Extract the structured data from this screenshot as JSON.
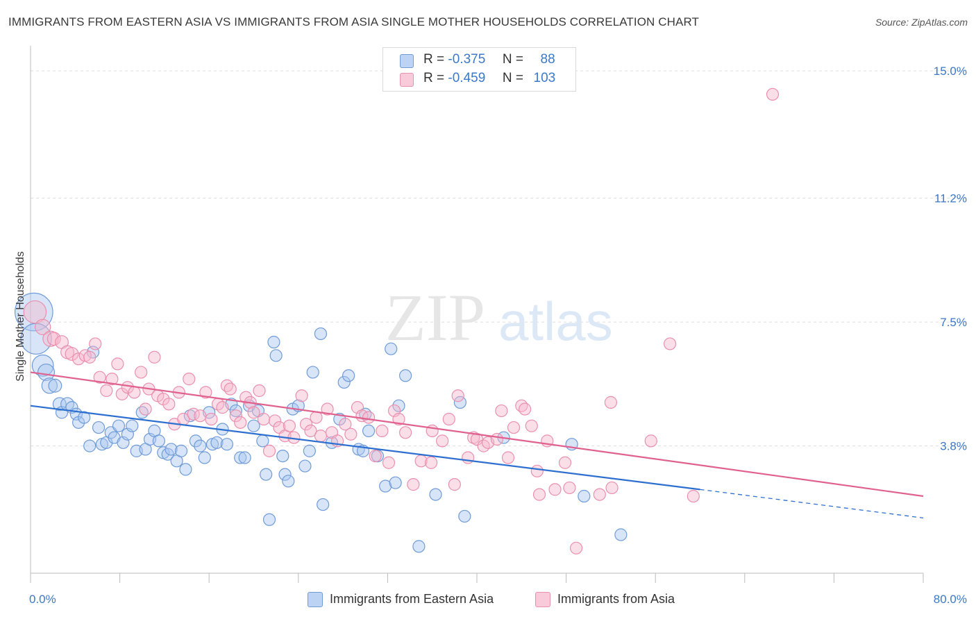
{
  "title": "IMMIGRANTS FROM EASTERN ASIA VS IMMIGRANTS FROM ASIA SINGLE MOTHER HOUSEHOLDS CORRELATION CHART",
  "source": "Source: ZipAtlas.com",
  "watermark": {
    "zip": "ZIP",
    "atlas": "atlas"
  },
  "legend": {
    "rows": [
      {
        "r_label": "R =",
        "r_value": "-0.375",
        "n_label": "N =",
        "n_value": "88"
      },
      {
        "r_label": "R =",
        "r_value": "-0.459",
        "n_label": "N =",
        "n_value": "103"
      }
    ]
  },
  "colors": {
    "blue_fill": "#a9c6f0",
    "blue_stroke": "#6f9bd8",
    "blue_line": "#2c6fcf",
    "pink_fill": "#f7b9cd",
    "pink_stroke": "#ea8fae",
    "pink_line": "#e0608e",
    "tick_text": "#3b78c9",
    "grid": "#dddddd"
  },
  "chart_data": {
    "type": "scatter",
    "title": "IMMIGRANTS FROM EASTERN ASIA VS IMMIGRANTS FROM ASIA SINGLE MOTHER HOUSEHOLDS CORRELATION CHART",
    "xlabel": "",
    "ylabel": "Single Mother Households",
    "xlim": [
      0,
      80
    ],
    "ylim": [
      0,
      15.5
    ],
    "x_tick_labels": [
      "0.0%",
      "80.0%"
    ],
    "y_ticks": [
      3.8,
      7.5,
      11.2,
      15.0
    ],
    "y_tick_labels": [
      "3.8%",
      "7.5%",
      "11.2%",
      "15.0%"
    ],
    "grid": true,
    "legend_position": "top-center",
    "series": [
      {
        "name": "Immigrants from Eastern Asia",
        "color": "#a9c6f0",
        "trend": {
          "x0": 0,
          "y0": 5.0,
          "x1": 60,
          "y1": 2.5,
          "dashed_to_x": 80,
          "dashed_to_y": 1.65
        },
        "points": [
          [
            0.3,
            7.8,
            3.2
          ],
          [
            0.5,
            7.0,
            2.6
          ],
          [
            1.1,
            6.2,
            1.8
          ],
          [
            1.4,
            6.0,
            1.4
          ],
          [
            1.7,
            5.6,
            1.3
          ],
          [
            2.2,
            5.6,
            1.1
          ],
          [
            2.6,
            5.05,
            1.1
          ],
          [
            2.8,
            4.8,
            1.0
          ],
          [
            3.3,
            5.05,
            1.1
          ],
          [
            3.7,
            4.95,
            1.0
          ],
          [
            4.1,
            4.75,
            1.0
          ],
          [
            4.3,
            4.5,
            1.0
          ],
          [
            4.8,
            4.65,
            1.0
          ],
          [
            5.3,
            3.8,
            1.0
          ],
          [
            5.6,
            6.6,
            1.0
          ],
          [
            6.1,
            4.35,
            1.0
          ],
          [
            6.4,
            3.85,
            1.0
          ],
          [
            6.8,
            3.9,
            1.0
          ],
          [
            7.2,
            4.2,
            1.0
          ],
          [
            7.5,
            4.05,
            1.0
          ],
          [
            7.9,
            4.4,
            1.0
          ],
          [
            8.3,
            3.9,
            1.0
          ],
          [
            8.7,
            4.15,
            1.0
          ],
          [
            9.1,
            4.4,
            1.0
          ],
          [
            9.5,
            3.65,
            1.0
          ],
          [
            10.0,
            4.8,
            1.0
          ],
          [
            10.3,
            3.7,
            1.0
          ],
          [
            10.7,
            4.0,
            1.0
          ],
          [
            11.1,
            4.25,
            1.0
          ],
          [
            11.5,
            3.95,
            1.0
          ],
          [
            11.9,
            3.6,
            1.0
          ],
          [
            12.3,
            3.55,
            1.0
          ],
          [
            12.6,
            3.7,
            1.0
          ],
          [
            13.1,
            3.35,
            1.0
          ],
          [
            13.5,
            3.65,
            1.0
          ],
          [
            13.9,
            3.1,
            1.0
          ],
          [
            14.3,
            4.7,
            1.0
          ],
          [
            14.8,
            3.95,
            1.0
          ],
          [
            15.2,
            3.8,
            1.0
          ],
          [
            15.6,
            3.45,
            1.0
          ],
          [
            16.0,
            4.8,
            1.0
          ],
          [
            16.3,
            3.85,
            1.0
          ],
          [
            16.7,
            3.9,
            1.0
          ],
          [
            17.2,
            4.3,
            1.0
          ],
          [
            17.6,
            3.85,
            1.0
          ],
          [
            18.0,
            5.05,
            1.0
          ],
          [
            18.4,
            4.85,
            1.0
          ],
          [
            18.8,
            3.45,
            1.0
          ],
          [
            19.2,
            3.45,
            1.0
          ],
          [
            19.6,
            5.0,
            1.0
          ],
          [
            20.0,
            4.4,
            1.0
          ],
          [
            20.4,
            4.85,
            1.0
          ],
          [
            20.8,
            3.95,
            1.0
          ],
          [
            21.1,
            2.95,
            1.0
          ],
          [
            21.4,
            1.6,
            1.0
          ],
          [
            21.8,
            6.9,
            1.0
          ],
          [
            22.0,
            6.5,
            1.0
          ],
          [
            22.6,
            3.5,
            1.0
          ],
          [
            22.8,
            2.95,
            1.0
          ],
          [
            23.1,
            2.75,
            1.0
          ],
          [
            23.5,
            4.9,
            1.0
          ],
          [
            24.0,
            5.0,
            1.0
          ],
          [
            24.6,
            3.2,
            1.0
          ],
          [
            25.0,
            3.65,
            1.0
          ],
          [
            25.3,
            6.0,
            1.0
          ],
          [
            26.0,
            7.15,
            1.0
          ],
          [
            26.2,
            2.05,
            1.0
          ],
          [
            27.0,
            3.9,
            1.0
          ],
          [
            27.7,
            4.6,
            1.0
          ],
          [
            28.1,
            5.7,
            1.0
          ],
          [
            28.5,
            5.9,
            1.0
          ],
          [
            29.4,
            3.7,
            1.0
          ],
          [
            29.8,
            3.65,
            1.0
          ],
          [
            30.0,
            4.75,
            1.0
          ],
          [
            30.3,
            4.25,
            1.0
          ],
          [
            31.1,
            3.5,
            1.0
          ],
          [
            31.8,
            2.6,
            1.0
          ],
          [
            32.3,
            6.7,
            1.0
          ],
          [
            32.7,
            2.7,
            1.0
          ],
          [
            33.0,
            5.0,
            1.0
          ],
          [
            33.6,
            5.9,
            1.0
          ],
          [
            34.8,
            0.8,
            1.0
          ],
          [
            36.3,
            2.35,
            1.0
          ],
          [
            38.5,
            5.1,
            1.0
          ],
          [
            38.9,
            1.7,
            1.0
          ],
          [
            42.4,
            4.05,
            1.0
          ],
          [
            48.5,
            3.85,
            1.0
          ],
          [
            49.6,
            2.3,
            1.0
          ],
          [
            52.9,
            1.15,
            1.0
          ]
        ]
      },
      {
        "name": "Immigrants from Asia",
        "color": "#f7b9cd",
        "trend": {
          "x0": 0,
          "y0": 6.0,
          "x1": 80,
          "y1": 2.3
        },
        "points": [
          [
            0.4,
            7.8,
            1.9
          ],
          [
            1.1,
            7.35,
            1.3
          ],
          [
            1.8,
            7.0,
            1.3
          ],
          [
            2.1,
            7.0,
            1.1
          ],
          [
            2.8,
            6.9,
            1.1
          ],
          [
            3.3,
            6.6,
            1.1
          ],
          [
            3.7,
            6.55,
            1.1
          ],
          [
            4.3,
            6.4,
            1.0
          ],
          [
            4.9,
            6.5,
            1.0
          ],
          [
            5.3,
            6.45,
            1.0
          ],
          [
            5.8,
            6.85,
            1.0
          ],
          [
            6.2,
            5.85,
            1.0
          ],
          [
            6.8,
            5.45,
            1.0
          ],
          [
            7.3,
            5.8,
            1.0
          ],
          [
            7.8,
            6.25,
            1.0
          ],
          [
            8.2,
            5.35,
            1.0
          ],
          [
            8.7,
            5.55,
            1.0
          ],
          [
            9.3,
            5.4,
            1.0
          ],
          [
            9.9,
            6.0,
            1.0
          ],
          [
            10.3,
            4.9,
            1.0
          ],
          [
            10.6,
            5.5,
            1.0
          ],
          [
            11.1,
            6.45,
            1.0
          ],
          [
            11.4,
            5.3,
            1.0
          ],
          [
            11.9,
            5.2,
            1.0
          ],
          [
            12.4,
            5.05,
            1.0
          ],
          [
            12.9,
            4.45,
            1.0
          ],
          [
            13.3,
            5.4,
            1.0
          ],
          [
            13.7,
            4.6,
            1.0
          ],
          [
            14.2,
            5.8,
            1.0
          ],
          [
            14.6,
            4.75,
            1.0
          ],
          [
            15.2,
            4.7,
            1.0
          ],
          [
            15.7,
            5.4,
            1.0
          ],
          [
            16.2,
            4.6,
            1.0
          ],
          [
            16.8,
            5.05,
            1.0
          ],
          [
            17.2,
            4.95,
            1.0
          ],
          [
            17.6,
            5.6,
            1.0
          ],
          [
            17.9,
            5.5,
            1.0
          ],
          [
            18.4,
            4.7,
            1.0
          ],
          [
            18.8,
            4.5,
            1.0
          ],
          [
            19.3,
            5.25,
            1.0
          ],
          [
            19.7,
            5.1,
            1.0
          ],
          [
            20.0,
            4.8,
            1.0
          ],
          [
            20.5,
            5.45,
            1.0
          ],
          [
            20.9,
            4.6,
            1.0
          ],
          [
            21.4,
            3.65,
            1.0
          ],
          [
            21.9,
            4.55,
            1.0
          ],
          [
            22.3,
            4.35,
            1.0
          ],
          [
            22.8,
            4.1,
            1.0
          ],
          [
            23.2,
            4.4,
            1.0
          ],
          [
            23.6,
            4.05,
            1.0
          ],
          [
            24.3,
            5.3,
            1.0
          ],
          [
            24.7,
            4.45,
            1.0
          ],
          [
            25.1,
            4.25,
            1.0
          ],
          [
            25.6,
            4.65,
            1.0
          ],
          [
            26.0,
            4.1,
            1.0
          ],
          [
            26.6,
            4.9,
            1.0
          ],
          [
            27.0,
            4.2,
            1.0
          ],
          [
            27.5,
            3.95,
            1.0
          ],
          [
            28.2,
            4.45,
            1.0
          ],
          [
            28.7,
            4.15,
            1.0
          ],
          [
            29.3,
            4.95,
            1.0
          ],
          [
            29.7,
            4.7,
            1.0
          ],
          [
            30.3,
            4.65,
            1.0
          ],
          [
            30.9,
            3.5,
            1.0
          ],
          [
            31.5,
            4.25,
            1.0
          ],
          [
            32.1,
            3.3,
            1.0
          ],
          [
            32.6,
            4.85,
            1.0
          ],
          [
            33.0,
            4.6,
            1.0
          ],
          [
            33.6,
            4.2,
            1.0
          ],
          [
            34.3,
            2.65,
            1.0
          ],
          [
            35.0,
            3.35,
            1.0
          ],
          [
            35.9,
            3.3,
            1.0
          ],
          [
            36.0,
            4.25,
            1.0
          ],
          [
            36.9,
            3.95,
            1.0
          ],
          [
            37.5,
            4.6,
            1.0
          ],
          [
            38.0,
            2.65,
            1.0
          ],
          [
            38.3,
            5.3,
            1.0
          ],
          [
            39.2,
            3.45,
            1.0
          ],
          [
            39.7,
            4.05,
            1.0
          ],
          [
            40.0,
            4.0,
            1.0
          ],
          [
            40.6,
            3.8,
            1.0
          ],
          [
            41.0,
            3.9,
            1.0
          ],
          [
            41.8,
            4.0,
            1.0
          ],
          [
            42.2,
            4.85,
            1.0
          ],
          [
            42.8,
            3.45,
            1.0
          ],
          [
            43.3,
            4.35,
            1.0
          ],
          [
            44.0,
            5.0,
            1.0
          ],
          [
            44.3,
            4.9,
            1.0
          ],
          [
            44.9,
            4.4,
            1.0
          ],
          [
            45.4,
            3.05,
            1.0
          ],
          [
            45.6,
            2.35,
            1.0
          ],
          [
            46.3,
            3.95,
            1.0
          ],
          [
            47.0,
            2.5,
            1.0
          ],
          [
            47.9,
            3.3,
            1.0
          ],
          [
            48.3,
            2.55,
            1.0
          ],
          [
            48.9,
            0.75,
            1.0
          ],
          [
            51.0,
            2.35,
            1.0
          ],
          [
            52.0,
            5.1,
            1.0
          ],
          [
            52.1,
            2.55,
            1.0
          ],
          [
            55.6,
            3.95,
            1.0
          ],
          [
            57.3,
            6.85,
            1.0
          ],
          [
            59.4,
            2.3,
            1.0
          ],
          [
            66.5,
            14.3,
            1.0
          ]
        ]
      }
    ]
  },
  "bottom_legend": [
    "Immigrants from Eastern Asia",
    "Immigrants from Asia"
  ]
}
